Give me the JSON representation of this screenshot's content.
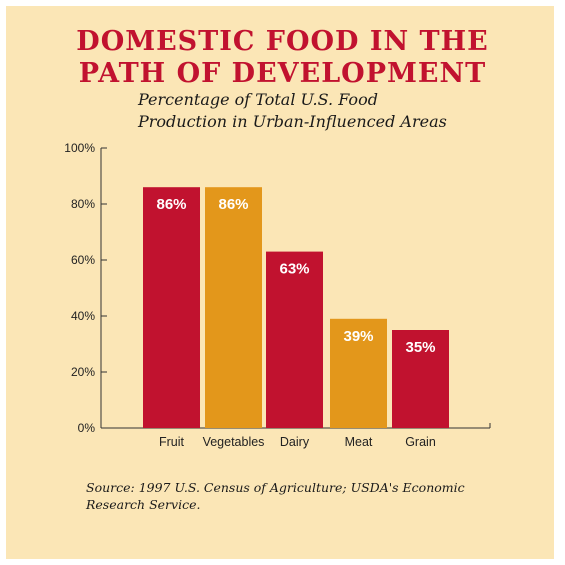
{
  "title_line1": "DOMESTIC FOOD IN THE",
  "title_line2": "PATH OF DEVELOPMENT",
  "subtitle_line1": "Percentage of Total U.S. Food",
  "subtitle_line2": "Production in Urban-Influenced Areas",
  "source_line1": "Source: 1997 U.S. Census of Agriculture; USDA's Economic",
  "source_line2": "Research Service.",
  "colors": {
    "background": "#fbe6b6",
    "title": "#c1122f",
    "red_bar": "#c1122f",
    "orange_bar": "#e3971b"
  },
  "chart_data": {
    "type": "bar",
    "categories": [
      "Fruit",
      "Vegetables",
      "Dairy",
      "Meat",
      "Grain"
    ],
    "values": [
      86,
      86,
      63,
      39,
      35
    ],
    "data_labels": [
      "86%",
      "86%",
      "63%",
      "39%",
      "35%"
    ],
    "bar_colors": [
      "#c1122f",
      "#e3971b",
      "#c1122f",
      "#e3971b",
      "#c1122f"
    ],
    "yticks": [
      "0%",
      "20%",
      "40%",
      "60%",
      "80%",
      "100%"
    ],
    "ylim": [
      0,
      100
    ],
    "title": "DOMESTIC FOOD IN THE PATH OF DEVELOPMENT",
    "subtitle": "Percentage of Total U.S. Food Production in Urban-Influenced Areas",
    "xlabel": "",
    "ylabel": "",
    "grid": false,
    "legend": "none"
  }
}
